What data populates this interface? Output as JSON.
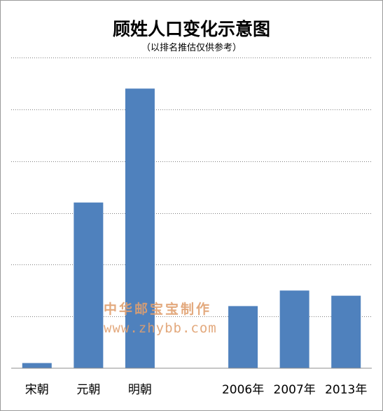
{
  "chart_data": {
    "type": "bar",
    "title": "顾姓人口变化示意图",
    "subtitle": "（以排名推估仅供参考）",
    "categories": [
      "宋朝",
      "元朝",
      "明朝",
      "",
      "2006年",
      "2007年",
      "2013年"
    ],
    "values": [
      1,
      32,
      54,
      null,
      12,
      15,
      14
    ],
    "ylim": [
      0,
      60
    ],
    "grid": true,
    "grid_style": "dotted",
    "bar_color": "#4f81bd",
    "legend": "none"
  },
  "watermark": {
    "line1": "中华邮宝宝制作",
    "line2": "www.zhybb.com"
  }
}
